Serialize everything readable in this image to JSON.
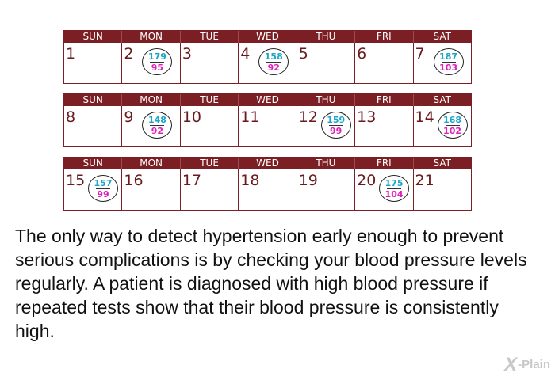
{
  "days": [
    "SUN",
    "MON",
    "TUE",
    "WED",
    "THU",
    "FRI",
    "SAT"
  ],
  "weeks": [
    [
      {
        "d": "1"
      },
      {
        "d": "2",
        "sys": "179",
        "dia": "95"
      },
      {
        "d": "3"
      },
      {
        "d": "4",
        "sys": "158",
        "dia": "92"
      },
      {
        "d": "5"
      },
      {
        "d": "6"
      },
      {
        "d": "7",
        "sys": "187",
        "dia": "103"
      }
    ],
    [
      {
        "d": "8"
      },
      {
        "d": "9",
        "sys": "148",
        "dia": "92"
      },
      {
        "d": "10"
      },
      {
        "d": "11"
      },
      {
        "d": "12",
        "sys": "159",
        "dia": "99"
      },
      {
        "d": "13"
      },
      {
        "d": "14",
        "sys": "168",
        "dia": "102"
      }
    ],
    [
      {
        "d": "15",
        "sys": "157",
        "dia": "99"
      },
      {
        "d": "16"
      },
      {
        "d": "17"
      },
      {
        "d": "18"
      },
      {
        "d": "19"
      },
      {
        "d": "20",
        "sys": "175",
        "dia": "104"
      },
      {
        "d": "21"
      }
    ]
  ],
  "colors": {
    "header": "#7b1f24",
    "systolic": "#1aa6c9",
    "diastolic": "#e020b8"
  },
  "paragraph": "The only way to detect hypertension early enough to prevent serious complications is by checking your blood pressure levels regularly. A patient is diagnosed with high blood pressure if repeated tests show that their blood pressure is consistently high.",
  "logo": {
    "mark": "X",
    "text": "-Plain"
  }
}
